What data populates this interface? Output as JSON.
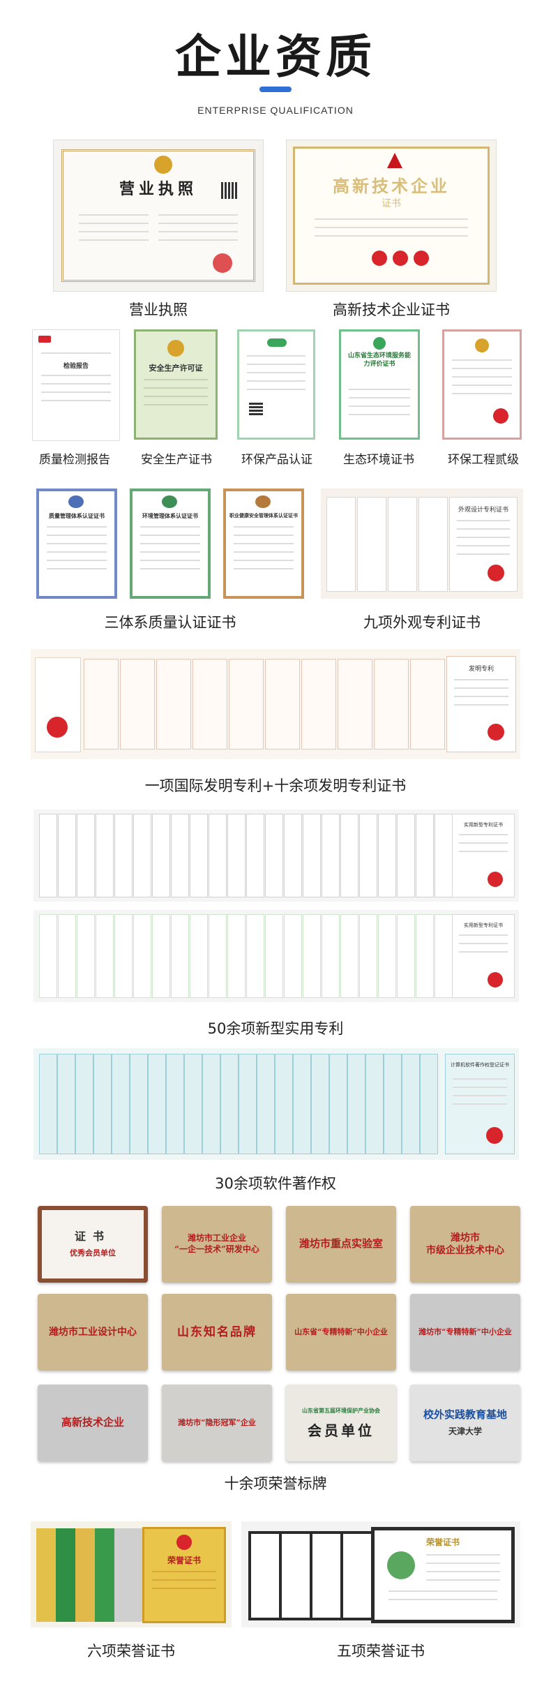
{
  "header": {
    "title": "企业资质",
    "subtitle": "ENTERPRISE QUALIFICATION"
  },
  "captions": {
    "business_license": "营业执照",
    "hightech_cert": "高新技术企业证书",
    "quality_report": "质量检测报告",
    "safety_cert": "安全生产证书",
    "eco_product": "环保产品认证",
    "eco_env": "生态环境证书",
    "eco_grade": "环保工程贰级",
    "three_system": "三体系质量认证证书",
    "nine_design": "九项外观专利证书",
    "invention": "一项国际发明专利+十余项发明专利证书",
    "utility": "50余项新型实用专利",
    "software": "30余项软件著作权",
    "plaques": "十余项荣誉标牌",
    "six_honors": "六项荣誉证书",
    "five_honors": "五项荣誉证书"
  },
  "documents": {
    "license_heading": "营业执照",
    "hightech_heading": "高新技术企业",
    "hightech_sub": "证书",
    "safety_heading": "安全生产许可证",
    "eco_assess": "山东省生态环境服务能力评价证书",
    "report_heading": "检验报告",
    "qms": "质量管理体系认证证书",
    "ems": "环境管理体系认证证书",
    "ohs": "职业健康安全管理体系认证证书",
    "design_patent": "外观设计专利证书",
    "invention_sheet": "发明专利",
    "utility_sheet": "实用新型专利证书",
    "software_sheet": "计算机软件著作权登记证书",
    "honor_cert": "荣誉证书"
  },
  "plaques": {
    "p1_title": "证书",
    "p1_line": "优秀会员单位",
    "p2_title": "潍坊市工业企业\n“一企一技术”研发中心",
    "p3_title": "潍坊市重点实验室",
    "p4_title": "潍坊市\n市级企业技术中心",
    "p5_title": "潍坊市工业设计中心",
    "p6_title": "山东知名品牌",
    "p7_title": "山东省“专精特新”中小企业",
    "p8_title": "潍坊市“专精特新”中小企业",
    "p9_title": "高新技术企业",
    "p10_title": "潍坊市“隐形冠军”企业",
    "p11_org": "山东省第五届环境保护产业协会",
    "p11_title": "会员单位",
    "p12_title": "校外实践教育基地",
    "p12_sub": "天津大学"
  },
  "colors": {
    "accent": "#2f6fd6",
    "seal": "#d8252b",
    "plaque_gold": "#cdb88f",
    "plaque_silver": "#c9c9c9",
    "plaque_red_text": "#c8161d"
  }
}
